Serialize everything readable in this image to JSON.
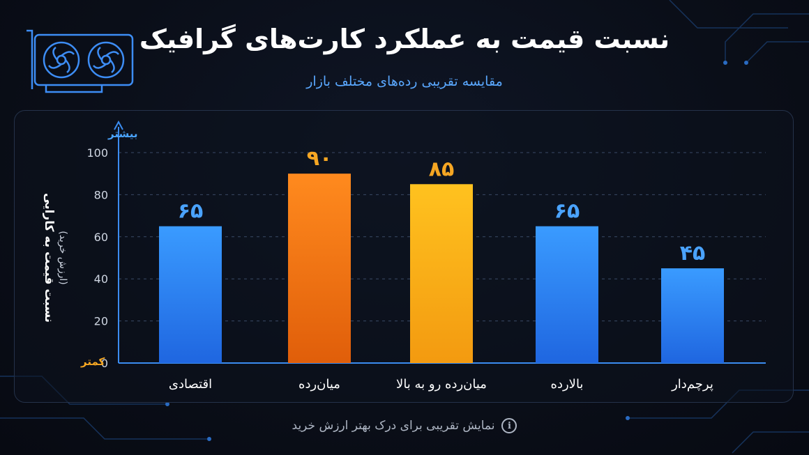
{
  "header": {
    "title": "نسبت قیمت به عملکرد کارت‌های گرافیک",
    "subtitle": "مقایسه تقریبی رده‌های مختلف بازار"
  },
  "footer": {
    "note": "نمایش تقریبی برای درک بهتر ارزش خرید",
    "icon": "info-icon"
  },
  "chart_data": {
    "type": "bar",
    "categories": [
      "اقتصادی",
      "میان‌رده",
      "میان‌رده رو به بالا",
      "بالارده",
      "پرچم‌دار"
    ],
    "values": [
      65,
      90,
      85,
      65,
      45
    ],
    "value_labels": [
      "۶۵",
      "۹۰",
      "۸۵",
      "۶۵",
      "۴۵"
    ],
    "ylabel": "نسبت قیمت به کارایی",
    "ylabel_sub": "(ارزش خرید)",
    "y_top_label": "بیشتر",
    "y_bottom_label": "کمتر",
    "ylim": [
      0,
      100
    ],
    "yticks": [
      0,
      20,
      40,
      60,
      80,
      100
    ],
    "grid": true,
    "colors": {
      "blue": "#2f8df5",
      "orange": "#f07a12",
      "yellow": "#f7b21a",
      "label_blue": "#4aa3ff",
      "label_orange": "#f5a623",
      "axis": "#3b8cf0"
    },
    "bar_colors": [
      "blue",
      "orange",
      "yellow",
      "blue",
      "blue"
    ]
  }
}
